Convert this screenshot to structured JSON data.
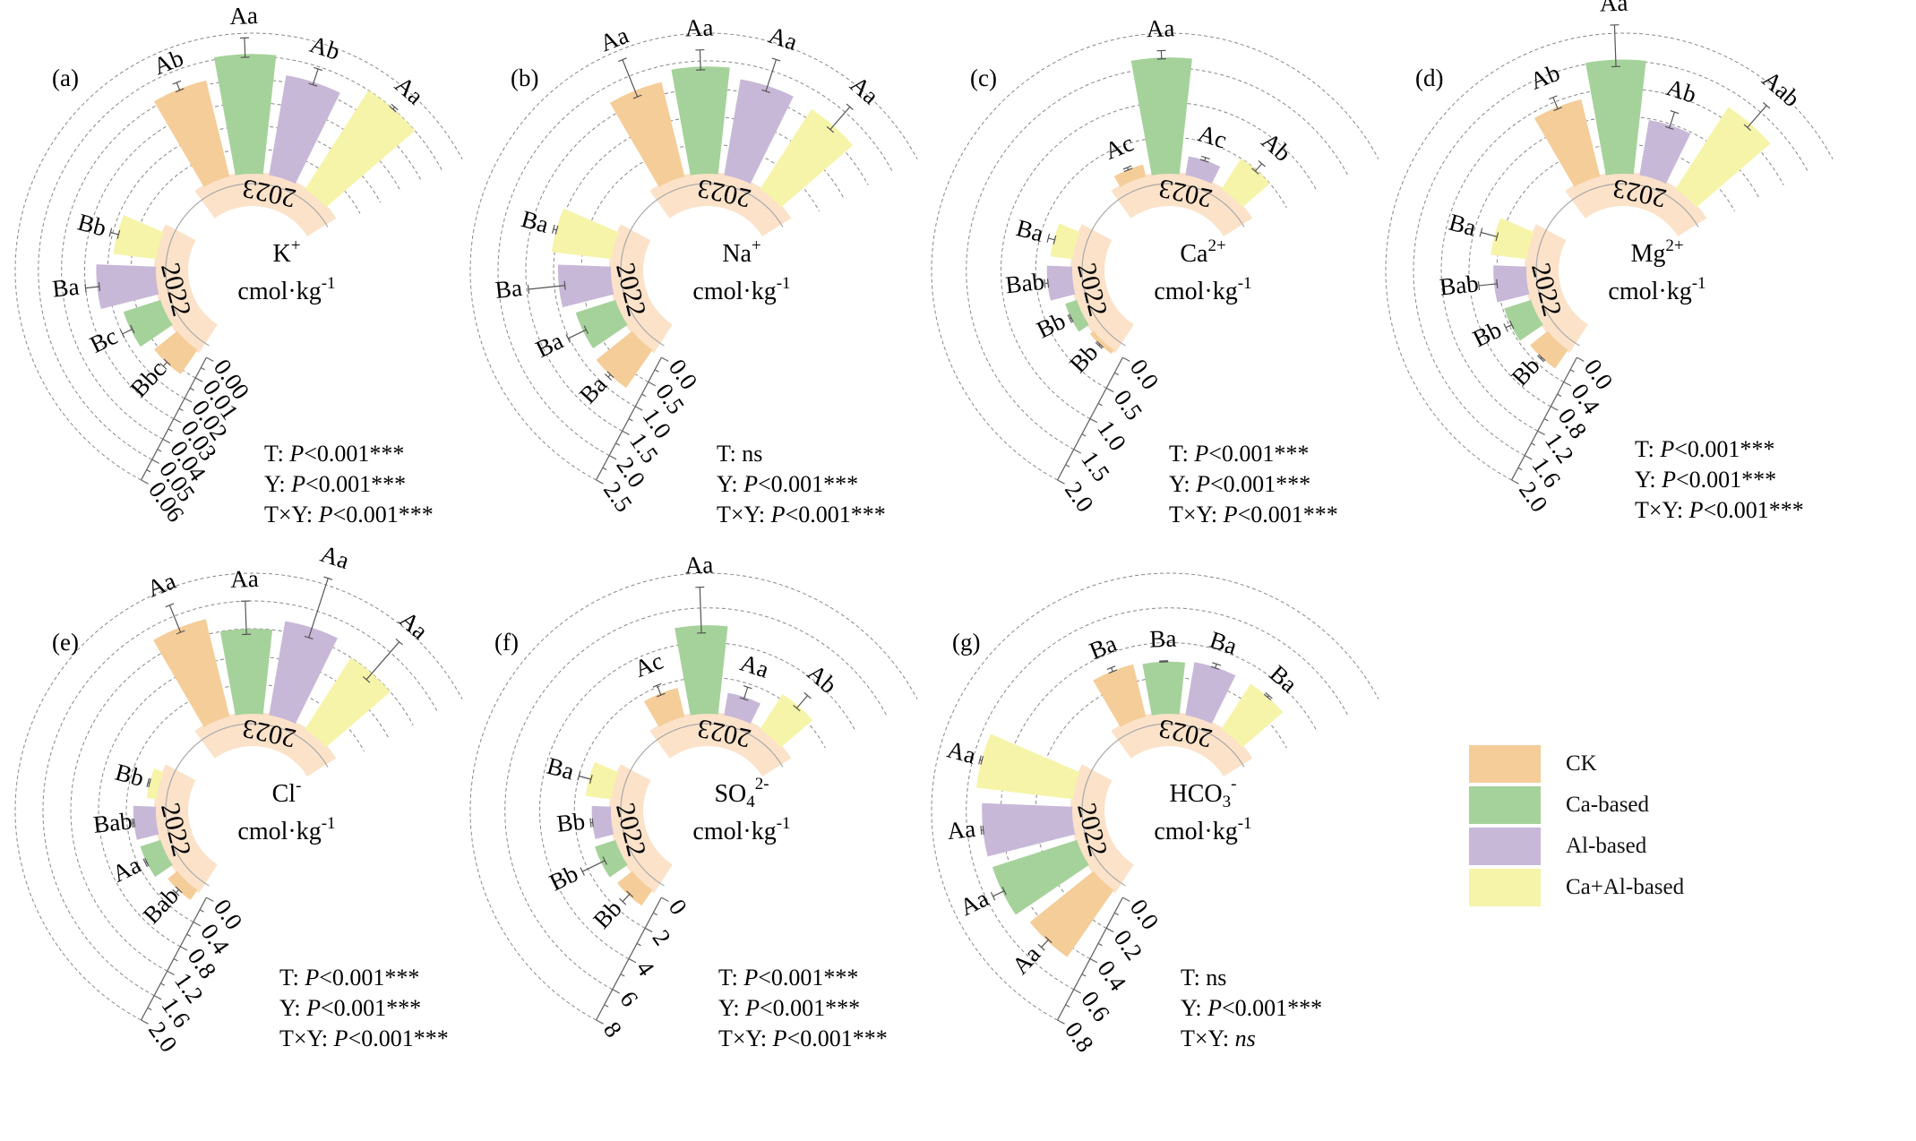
{
  "legend": {
    "items": [
      {
        "label": "CK",
        "color": "#F5CD99"
      },
      {
        "label": "Ca-based",
        "color": "#A5D29A"
      },
      {
        "label": "Al-based",
        "color": "#C8B8D8"
      },
      {
        "label": "Ca+Al-based",
        "color": "#F6F4A8"
      }
    ]
  },
  "ring_color": "#FADDBF",
  "chart_data": [
    {
      "type": "bar",
      "subtype": "circular-bar",
      "panel": "(a)",
      "title": "K+",
      "title_base": "K",
      "title_sup": "+",
      "title_sub": "",
      "unit": "cmol·kg",
      "unit_sup": "-1",
      "years": [
        "2022",
        "2023"
      ],
      "categories": [
        "CK",
        "Ca-based",
        "Al-based",
        "Ca+Al-based"
      ],
      "series": [
        {
          "name": "2022",
          "values": [
            0.012,
            0.016,
            0.025,
            0.018
          ],
          "errors": [
            0.002,
            0.004,
            0.005,
            0.003
          ],
          "letters": [
            "Bbc",
            "Bc",
            "Ba",
            "Bb"
          ]
        },
        {
          "name": "2023",
          "values": [
            0.042,
            0.051,
            0.043,
            0.05
          ],
          "errors": [
            0.003,
            0.007,
            0.006,
            0.001
          ],
          "letters": [
            "Ab",
            "Aa",
            "Ab",
            "Aa"
          ]
        }
      ],
      "axis_ticks": [
        "0.00",
        "0.01",
        "0.02",
        "0.03",
        "0.04",
        "0.05",
        "0.06"
      ],
      "ylim": [
        0,
        0.06
      ],
      "stats": [
        {
          "prefix": "T: ",
          "p": "P",
          "rest": "<0.001***"
        },
        {
          "prefix": "Y: ",
          "p": "P",
          "rest": "<0.001***"
        },
        {
          "prefix": "T×Y: ",
          "p": "P",
          "rest": "<0.001***"
        }
      ]
    },
    {
      "type": "bar",
      "subtype": "circular-bar",
      "panel": "(b)",
      "title": "Na+",
      "title_base": "Na",
      "title_sup": "+",
      "title_sub": "",
      "unit": "cmol·kg",
      "unit_sup": "-1",
      "years": [
        "2022",
        "2023"
      ],
      "categories": [
        "CK",
        "Ca-based",
        "Al-based",
        "Ca+Al-based"
      ],
      "series": [
        {
          "name": "2022",
          "values": [
            0.8,
            0.72,
            0.92,
            1.05
          ],
          "errors": [
            0.05,
            0.3,
            0.55,
            0.05
          ],
          "letters": [
            "Ba",
            "Ba",
            "Ba",
            "Ba"
          ]
        },
        {
          "name": "2023",
          "values": [
            1.72,
            1.9,
            1.72,
            1.68
          ],
          "errors": [
            0.6,
            0.3,
            0.5,
            0.45
          ],
          "letters": [
            "Aa",
            "Aa",
            "Aa",
            "Aa"
          ]
        }
      ],
      "axis_ticks": [
        "0.0",
        "0.5",
        "1.0",
        "1.5",
        "2.0",
        "2.5"
      ],
      "ylim": [
        0,
        2.5
      ],
      "stats": [
        {
          "prefix": "T: ns",
          "p": "",
          "rest": ""
        },
        {
          "prefix": "Y: ",
          "p": "P",
          "rest": "<0.001***"
        },
        {
          "prefix": "T×Y: ",
          "p": "P",
          "rest": "<0.001***"
        }
      ]
    },
    {
      "type": "bar",
      "subtype": "circular-bar",
      "panel": "(c)",
      "title": "Ca2+",
      "title_base": "Ca",
      "title_sup": "2+",
      "title_sub": "",
      "unit": "cmol·kg",
      "unit_sup": "-1",
      "years": [
        "2022",
        "2023"
      ],
      "categories": [
        "CK",
        "Ca-based",
        "Al-based",
        "Ca+Al-based"
      ],
      "series": [
        {
          "name": "2022",
          "values": [
            0.04,
            0.15,
            0.34,
            0.3
          ],
          "errors": [
            0.02,
            0.02,
            0.04,
            0.08
          ],
          "letters": [
            "Bb",
            "Bb",
            "Bab",
            "Ba"
          ]
        },
        {
          "name": "2023",
          "values": [
            0.15,
            1.65,
            0.25,
            0.5
          ],
          "errors": [
            0.03,
            0.1,
            0.04,
            0.12
          ],
          "letters": [
            "Ac",
            "Aa",
            "Ac",
            "Ab"
          ]
        }
      ],
      "axis_ticks": [
        "0.0",
        "0.5",
        "1.0",
        "1.5",
        "2.0"
      ],
      "ylim": [
        0,
        2.0
      ],
      "stats": [
        {
          "prefix": "T: ",
          "p": "P",
          "rest": "<0.001***"
        },
        {
          "prefix": "Y: ",
          "p": "P",
          "rest": "<0.001***"
        },
        {
          "prefix": "T×Y: ",
          "p": "P",
          "rest": "<0.001***"
        }
      ]
    },
    {
      "type": "bar",
      "subtype": "circular-bar",
      "panel": "(d)",
      "title": "Mg2+",
      "title_base": "Mg",
      "title_sup": "2+",
      "title_sub": "",
      "unit": "cmol·kg",
      "unit_sup": "-1",
      "years": [
        "2022",
        "2023"
      ],
      "categories": [
        "CK",
        "Ca-based",
        "Al-based",
        "Ca+Al-based"
      ],
      "series": [
        {
          "name": "2022",
          "values": [
            0.3,
            0.38,
            0.45,
            0.5
          ],
          "errors": [
            0.02,
            0.08,
            0.22,
            0.2
          ],
          "letters": [
            "Bb",
            "Bb",
            "Bab",
            "Ba"
          ]
        },
        {
          "name": "2023",
          "values": [
            1.12,
            1.62,
            0.78,
            1.38
          ],
          "errors": [
            0.15,
            0.5,
            0.2,
            0.35
          ],
          "letters": [
            "Ab",
            "Aa",
            "Ab",
            "Aab"
          ]
        }
      ],
      "axis_ticks": [
        "0.0",
        "0.4",
        "0.8",
        "1.2",
        "1.6",
        "2.0"
      ],
      "ylim": [
        0,
        2.0
      ],
      "stats": [
        {
          "prefix": "T: ",
          "p": "P",
          "rest": "<0.001***"
        },
        {
          "prefix": "Y: ",
          "p": "P",
          "rest": "<0.001***"
        },
        {
          "prefix": "T×Y: ",
          "p": "P",
          "rest": "<0.001***"
        }
      ]
    },
    {
      "type": "bar",
      "subtype": "circular-bar",
      "panel": "(e)",
      "title": "Cl-",
      "title_base": "Cl",
      "title_sup": "-",
      "title_sub": "",
      "unit": "cmol·kg",
      "unit_sup": "-1",
      "years": [
        "2022",
        "2023"
      ],
      "categories": [
        "CK",
        "Ca-based",
        "Al-based",
        "Ca+Al-based"
      ],
      "series": [
        {
          "name": "2022",
          "values": [
            0.15,
            0.28,
            0.3,
            0.12
          ],
          "errors": [
            0.05,
            0.02,
            0.02,
            0.02
          ],
          "letters": [
            "Bab",
            "Aa",
            "Bab",
            "Bb"
          ]
        },
        {
          "name": "2023",
          "values": [
            1.42,
            1.2,
            1.35,
            1.2
          ],
          "errors": [
            0.35,
            0.4,
            0.75,
            0.6
          ],
          "letters": [
            "Aa",
            "Aa",
            "Aa",
            "Aa"
          ]
        }
      ],
      "axis_ticks": [
        "0.0",
        "0.4",
        "0.8",
        "1.2",
        "1.6",
        "2.0"
      ],
      "ylim": [
        0,
        2.0
      ],
      "stats": [
        {
          "prefix": "T: ",
          "p": "P",
          "rest": "<0.001***"
        },
        {
          "prefix": "Y: ",
          "p": "P",
          "rest": "<0.001***"
        },
        {
          "prefix": "T×Y: ",
          "p": "P",
          "rest": "<0.001***"
        }
      ]
    },
    {
      "type": "bar",
      "subtype": "circular-bar",
      "panel": "(f)",
      "title": "SO42-",
      "title_base": "SO",
      "title_sup": "2-",
      "title_sub": "4",
      "unit": "cmol·kg",
      "unit_sup": "-1",
      "years": [
        "2022",
        "2023"
      ],
      "categories": [
        "CK",
        "Ca-based",
        "Al-based",
        "Ca+Al-based"
      ],
      "series": [
        {
          "name": "2022",
          "values": [
            1.0,
            1.15,
            1.0,
            1.4
          ],
          "errors": [
            0.5,
            1.2,
            0.1,
            0.6
          ],
          "letters": [
            "Bb",
            "Bb",
            "Bb",
            "Ba"
          ]
        },
        {
          "name": "2023",
          "values": [
            1.6,
            5.0,
            1.2,
            2.3
          ],
          "errors": [
            0.5,
            2.2,
            0.6,
            0.8
          ],
          "letters": [
            "Ac",
            "Aa",
            "Aa",
            "Ab"
          ]
        }
      ],
      "axis_ticks": [
        "0",
        "2",
        "4",
        "6",
        "8"
      ],
      "ylim": [
        0,
        8
      ],
      "stats": [
        {
          "prefix": "T: ",
          "p": "P",
          "rest": "<0.001***"
        },
        {
          "prefix": "Y: ",
          "p": "P",
          "rest": "<0.001***"
        },
        {
          "prefix": "T×Y: ",
          "p": "P",
          "rest": "<0.001***"
        }
      ]
    },
    {
      "type": "bar",
      "subtype": "circular-bar",
      "panel": "(g)",
      "title": "HCO3-",
      "title_base": "HCO",
      "title_sup": "-",
      "title_sub": "3",
      "unit": "cmol·kg",
      "unit_sup": "-1",
      "years": [
        "2022",
        "2023"
      ],
      "categories": [
        "CK",
        "Ca-based",
        "Al-based",
        "Ca+Al-based"
      ],
      "series": [
        {
          "name": "2022",
          "values": [
            0.46,
            0.5,
            0.51,
            0.55
          ],
          "errors": [
            0.05,
            0.06,
            0.01,
            0.01
          ],
          "letters": [
            "Aa",
            "Aa",
            "Aa",
            "Aa"
          ]
        },
        {
          "name": "2023",
          "values": [
            0.3,
            0.29,
            0.3,
            0.3
          ],
          "errors": [
            0.02,
            0.005,
            0.02,
            0.01
          ],
          "letters": [
            "Ba",
            "Ba",
            "Ba",
            "Ba"
          ]
        }
      ],
      "axis_ticks": [
        "0.0",
        "0.2",
        "0.4",
        "0.6",
        "0.8"
      ],
      "ylim": [
        0,
        0.8
      ],
      "stats": [
        {
          "prefix": "T: ns",
          "p": "",
          "rest": ""
        },
        {
          "prefix": "Y: ",
          "p": "P",
          "rest": "<0.001***"
        },
        {
          "prefix": "T×Y: ",
          "p": "",
          "rest": "",
          "italic_tail": "ns"
        }
      ]
    }
  ]
}
